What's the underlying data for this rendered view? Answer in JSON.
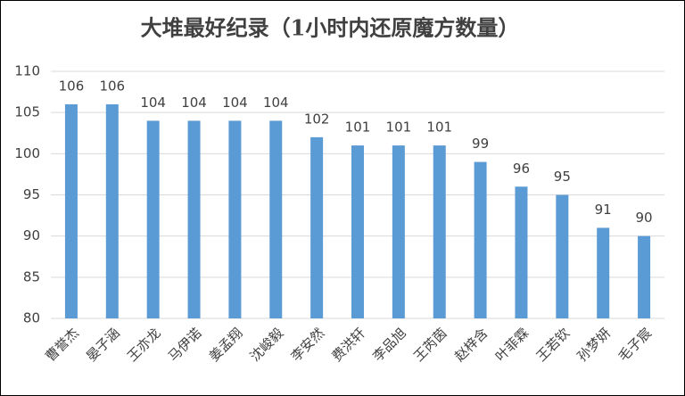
{
  "chart_data": {
    "type": "bar",
    "title": "大堆最好纪录（1小时内还原魔方数量）",
    "categories": [
      "曹誉杰",
      "晏子涵",
      "王亦龙",
      "马伊诺",
      "姜孟翔",
      "沈峻毅",
      "李安然",
      "费洪轩",
      "李品旭",
      "王芮茵",
      "赵梓含",
      "叶菲霖",
      "王若钦",
      "孙梦妍",
      "毛子宸"
    ],
    "values": [
      106,
      106,
      104,
      104,
      104,
      104,
      102,
      101,
      101,
      101,
      99,
      96,
      95,
      91,
      90
    ],
    "color": "#5b9bd5",
    "ylim": [
      80,
      110
    ],
    "yticks": [
      80,
      85,
      90,
      95,
      100,
      105,
      110
    ],
    "grid": true
  }
}
